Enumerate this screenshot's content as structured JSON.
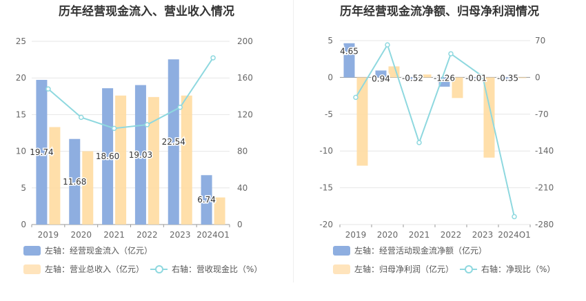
{
  "chart_data": [
    {
      "type": "bar",
      "title": "历年经营现金流入、营业收入情况",
      "categories": [
        "2019",
        "2020",
        "2021",
        "2022",
        "2023",
        "2024Q1"
      ],
      "left_axis": {
        "ylim": [
          0,
          25
        ],
        "ticks": [
          0,
          5,
          10,
          15,
          20,
          25
        ]
      },
      "right_axis": {
        "ylim": [
          0,
          200
        ],
        "ticks": [
          0,
          40,
          80,
          120,
          160,
          200
        ]
      },
      "grid": true,
      "series": [
        {
          "name": "左轴：经营现金流入（亿元）",
          "axis": "left",
          "kind": "bar",
          "color": "#8eaee0",
          "values": [
            19.74,
            11.68,
            18.6,
            19.03,
            22.54,
            6.74
          ],
          "labels": [
            "19.74",
            "11.68",
            "18.60",
            "19.03",
            "22.54",
            "6.74"
          ]
        },
        {
          "name": "左轴：营业总收入（亿元）",
          "axis": "left",
          "kind": "bar",
          "color": "#ffdba1",
          "values": [
            13.3,
            10.0,
            17.6,
            17.4,
            17.6,
            3.7
          ]
        },
        {
          "name": "右轴：营收现金比（%）",
          "axis": "right",
          "kind": "line",
          "color": "#8ed8df",
          "values": [
            148,
            117,
            105,
            109,
            128,
            182
          ]
        }
      ],
      "legend": {
        "rows": [
          [
            "左轴：经营现金流入（亿元）"
          ],
          [
            "左轴：营业总收入（亿元）",
            "右轴：营收现金比（%）"
          ]
        ],
        "placement": "bottom"
      }
    },
    {
      "type": "bar",
      "title": "历年经营现金流净额、归母净利润情况",
      "categories": [
        "2019",
        "2020",
        "2021",
        "2022",
        "2023",
        "2024Q1"
      ],
      "left_axis": {
        "ylim": [
          -20,
          5
        ],
        "ticks": [
          -20,
          -15,
          -10,
          -5,
          0,
          5
        ]
      },
      "right_axis": {
        "ylim": [
          -280,
          70
        ],
        "ticks": [
          -280,
          -210,
          -140,
          -70,
          0,
          70
        ]
      },
      "grid": true,
      "series": [
        {
          "name": "左轴：经营活动现金流净额（亿元）",
          "axis": "left",
          "kind": "bar",
          "color": "#8eaee0",
          "values": [
            4.65,
            0.94,
            -0.52,
            -1.26,
            -0.01,
            -0.35
          ],
          "labels": [
            "4.65",
            "0.94",
            "-0.52",
            "-1.26",
            "-0.01",
            "-0.35"
          ]
        },
        {
          "name": "左轴：归母净利润（亿元）",
          "axis": "left",
          "kind": "bar",
          "color": "#ffdba1",
          "values": [
            -12.0,
            1.5,
            0.4,
            -2.8,
            -10.9,
            -0.05
          ]
        },
        {
          "name": "右轴：净现比（%）",
          "axis": "right",
          "kind": "line",
          "color": "#8ed8df",
          "values": [
            -38,
            62,
            -124,
            45,
            2,
            -265
          ]
        }
      ],
      "legend": {
        "rows": [
          [
            "左轴：经营活动现金流净额（亿元）"
          ],
          [
            "左轴：归母净利润（亿元）",
            "右轴：净现比（%）"
          ]
        ],
        "placement": "bottom"
      }
    }
  ]
}
